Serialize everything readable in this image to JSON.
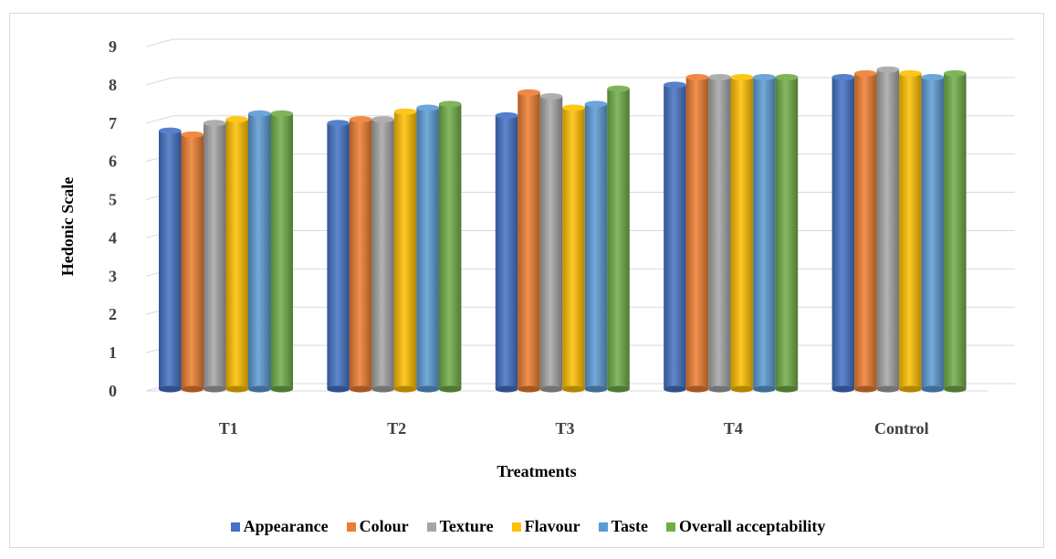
{
  "chart_data": {
    "type": "bar",
    "xlabel": "Treatments",
    "ylabel": "Hedonic Scale",
    "ylim": [
      0,
      9
    ],
    "yticks": [
      "0",
      "1",
      "2",
      "3",
      "4",
      "5",
      "6",
      "7",
      "8",
      "9"
    ],
    "grid": true,
    "legend_position": "bottom",
    "categories": [
      "T1",
      "T2",
      "T3",
      "T4",
      "Control"
    ],
    "series": [
      {
        "name": "Appearance",
        "color": "#4472c4",
        "values": [
          6.8,
          7.0,
          7.2,
          8.0,
          8.2
        ]
      },
      {
        "name": "Colour",
        "color": "#ed7d31",
        "values": [
          6.7,
          7.1,
          7.8,
          8.2,
          8.3
        ]
      },
      {
        "name": "Texture",
        "color": "#a5a5a5",
        "values": [
          7.0,
          7.1,
          7.7,
          8.2,
          8.4
        ]
      },
      {
        "name": "Flavour",
        "color": "#ffc000",
        "values": [
          7.1,
          7.3,
          7.4,
          8.2,
          8.3
        ]
      },
      {
        "name": "Taste",
        "color": "#5b9bd5",
        "values": [
          7.25,
          7.4,
          7.5,
          8.2,
          8.2
        ]
      },
      {
        "name": "Overall acceptability",
        "color": "#70ad47",
        "values": [
          7.25,
          7.5,
          7.9,
          8.2,
          8.3
        ]
      }
    ]
  }
}
